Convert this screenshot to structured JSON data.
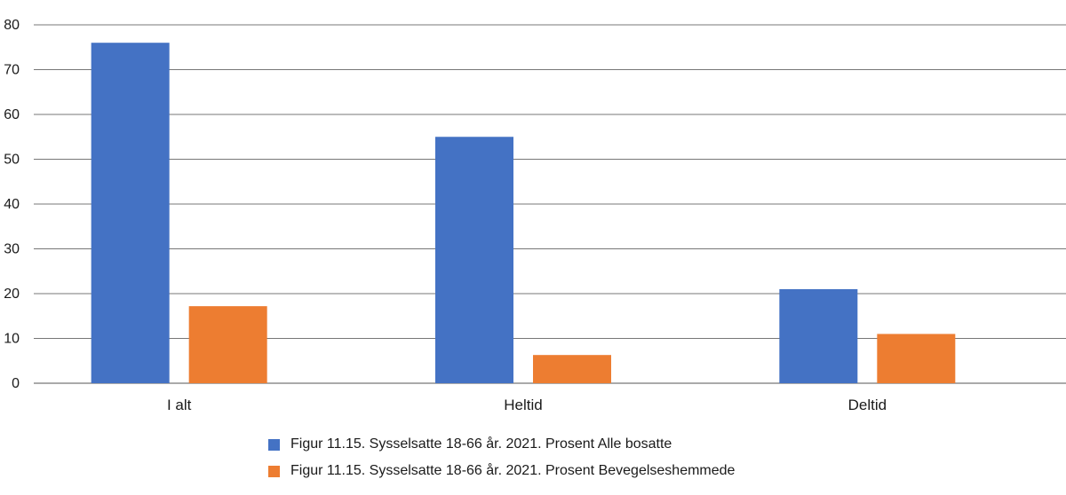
{
  "chart_data": {
    "type": "bar",
    "categories": [
      "I alt",
      "Heltid",
      "Deltid"
    ],
    "series": [
      {
        "name": "Figur 11.15. Sysselsatte 18-66 år. 2021. Prosent Alle bosatte",
        "values": [
          76,
          55,
          21
        ],
        "color": "#4472c4"
      },
      {
        "name": "Figur 11.15. Sysselsatte 18-66 år. 2021. Prosent Bevegelseshemmede",
        "values": [
          17.2,
          6.3,
          11
        ],
        "color": "#ed7d31"
      }
    ],
    "ylim": [
      0,
      80
    ],
    "yticks": [
      0,
      10,
      20,
      30,
      40,
      50,
      60,
      70,
      80
    ],
    "grid": true,
    "legend_position": "bottom"
  }
}
